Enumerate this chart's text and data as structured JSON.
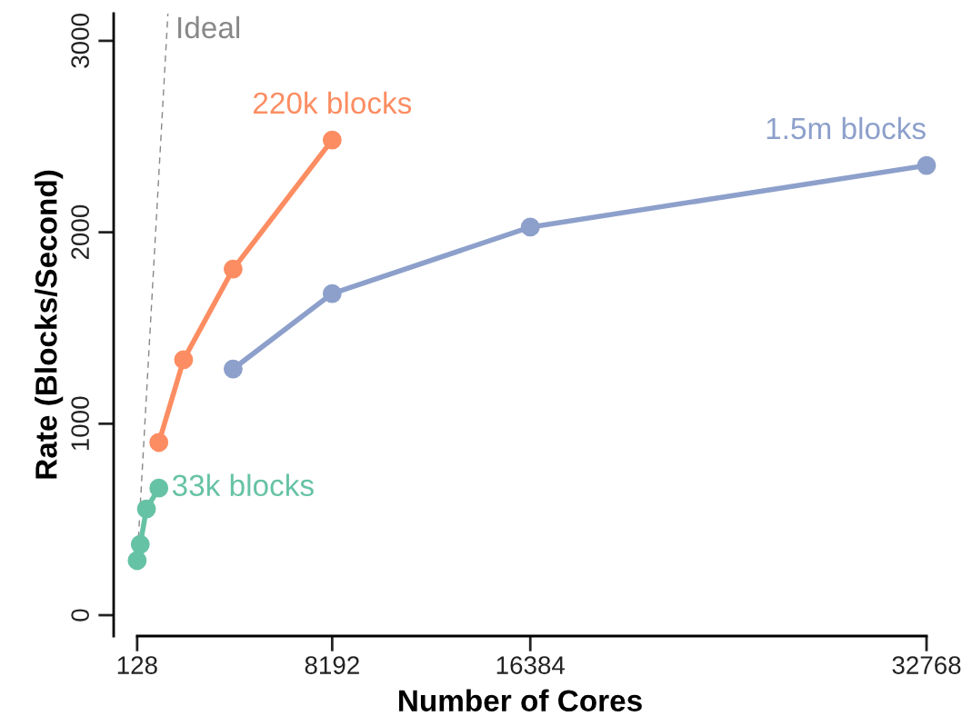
{
  "chart_data": {
    "type": "line",
    "xlabel": "Number of Cores",
    "ylabel": "Rate (Blocks/Second)",
    "xlim": [
      -844,
      32768
    ],
    "ylim": [
      -109,
      3142
    ],
    "xticks": [
      128,
      8192,
      16384,
      32768
    ],
    "yticks": [
      0,
      1000,
      2000,
      3000
    ],
    "marker": "circle",
    "line_style": "solid",
    "grid": false,
    "legend": false,
    "series": [
      {
        "name": "Ideal",
        "color": "#888888",
        "x": [
          128,
          1399
        ],
        "values": [
          285,
          3142
        ],
        "marker": "none",
        "line_style": "dashed"
      },
      {
        "name": "33k blocks",
        "color": "#66c2a5",
        "x": [
          128,
          256,
          512,
          1024
        ],
        "values": [
          285,
          370,
          555,
          664
        ]
      },
      {
        "name": "220k blocks",
        "color": "#fc8d62",
        "x": [
          1024,
          2048,
          4096,
          8192
        ],
        "values": [
          902,
          1334,
          1808,
          2482
        ]
      },
      {
        "name": "1.5m blocks",
        "color": "#8da0cb",
        "x": [
          4096,
          8192,
          16384,
          32768
        ],
        "values": [
          1286,
          1680,
          2027,
          2349
        ]
      }
    ]
  }
}
